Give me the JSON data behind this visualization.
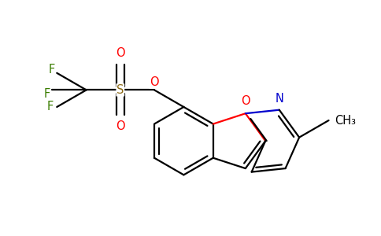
{
  "background_color": "#ffffff",
  "bond_color": "#000000",
  "atom_colors": {
    "O": "#ff0000",
    "N": "#0000cd",
    "F": "#3a7d00",
    "S": "#8b6914",
    "C": "#000000"
  },
  "bond_width": 1.6,
  "font_size": 10.5,
  "fig_width": 4.84,
  "fig_height": 3.0,
  "dpi": 100
}
